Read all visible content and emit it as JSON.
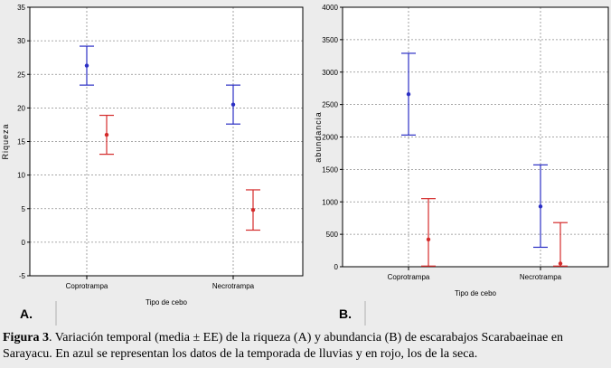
{
  "colors": {
    "lluvias": "#2b2fc4",
    "seca": "#d42a2a",
    "background": "#ececec",
    "plot_bg": "#ffffff"
  },
  "chart_data": [
    {
      "type": "scatter",
      "panel_label": "A.",
      "xlabel": "Tipo de cebo",
      "ylabel": "Riqueza",
      "categories": [
        "Coprotrampa",
        "Necrotrampa"
      ],
      "ylim": [
        -5,
        35
      ],
      "yticks": [
        -5,
        0,
        5,
        10,
        15,
        20,
        25,
        30,
        35
      ],
      "grid": true,
      "series": [
        {
          "color": "#2b2fc4",
          "values": [
            26.3,
            20.5
          ],
          "lower": [
            23.4,
            17.6
          ],
          "upper": [
            29.2,
            23.4
          ]
        },
        {
          "color": "#d42a2a",
          "values": [
            16.0,
            4.8
          ],
          "lower": [
            13.1,
            1.8
          ],
          "upper": [
            18.9,
            7.8
          ]
        }
      ]
    },
    {
      "type": "scatter",
      "panel_label": "B.",
      "xlabel": "Tipo de cebo",
      "ylabel": "abundancia",
      "categories": [
        "Coprotrampa",
        "Necrotrampa"
      ],
      "ylim": [
        0,
        4000
      ],
      "yticks": [
        0,
        500,
        1000,
        1500,
        2000,
        2500,
        3000,
        3500,
        4000
      ],
      "grid": true,
      "series": [
        {
          "color": "#2b2fc4",
          "values": [
            2660,
            930
          ],
          "lower": [
            2030,
            300
          ],
          "upper": [
            3290,
            1570
          ]
        },
        {
          "color": "#d42a2a",
          "values": [
            420,
            50
          ],
          "lower": [
            10,
            10
          ],
          "upper": [
            1050,
            680
          ]
        }
      ]
    }
  ],
  "caption": {
    "label": "Figura 3",
    "text": ". Variación temporal (media ± EE) de la riqueza (A) y abundancia (B) de escarabajos Scarabaeinae en Sarayacu. En azul se representan los datos de la temporada de lluvias y en rojo, los de la seca."
  }
}
